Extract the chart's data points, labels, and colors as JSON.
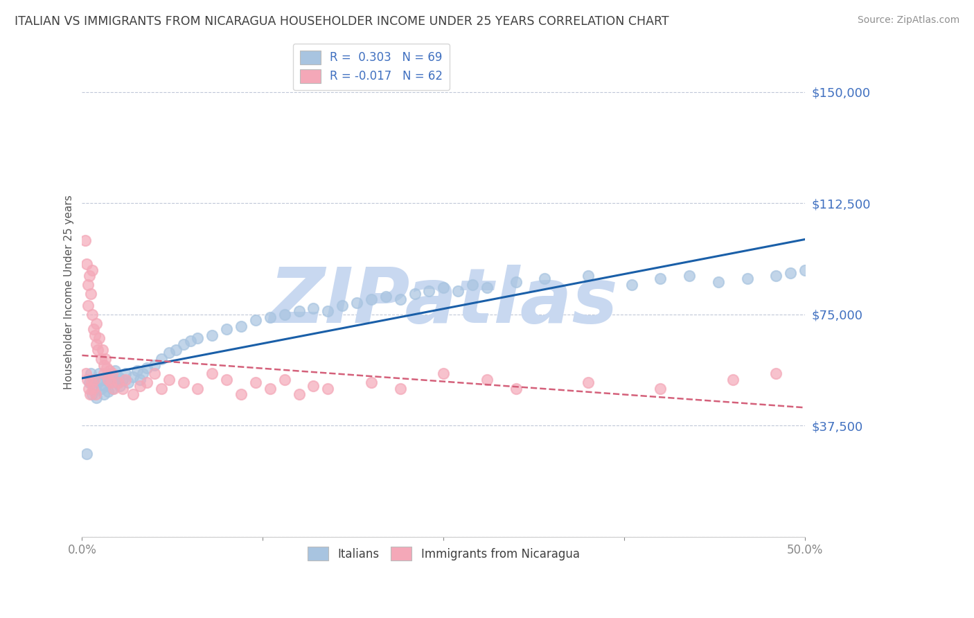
{
  "title": "ITALIAN VS IMMIGRANTS FROM NICARAGUA HOUSEHOLDER INCOME UNDER 25 YEARS CORRELATION CHART",
  "source_text": "Source: ZipAtlas.com",
  "ylabel": "Householder Income Under 25 years",
  "watermark": "ZIPatlas",
  "legend": {
    "italian_r": "R =  0.303",
    "italian_n": "N = 69",
    "nicaragua_r": "R = -0.017",
    "nicaragua_n": "N = 62"
  },
  "yticks": [
    0,
    37500,
    75000,
    112500,
    150000
  ],
  "ytick_labels": [
    "",
    "$37,500",
    "$75,000",
    "$112,500",
    "$150,000"
  ],
  "xlim": [
    0.0,
    50.0
  ],
  "ylim": [
    15000,
    165000
  ],
  "italian_color": "#a8c4e0",
  "nicaragua_color": "#f4a8b8",
  "italian_line_color": "#1a5fa8",
  "nicaragua_line_color": "#d4607a",
  "title_color": "#404040",
  "source_color": "#909090",
  "axis_label_color": "#4070c0",
  "watermark_color": "#c8d8f0",
  "background_color": "#ffffff",
  "italian_x": [
    0.3,
    0.5,
    0.6,
    0.7,
    0.8,
    0.9,
    1.0,
    1.1,
    1.2,
    1.3,
    1.4,
    1.5,
    1.6,
    1.7,
    1.8,
    1.9,
    2.0,
    2.1,
    2.2,
    2.3,
    2.4,
    2.5,
    2.6,
    2.8,
    3.0,
    3.2,
    3.5,
    3.8,
    4.0,
    4.2,
    4.5,
    5.0,
    5.5,
    6.0,
    6.5,
    7.0,
    7.5,
    8.0,
    9.0,
    10.0,
    11.0,
    12.0,
    13.0,
    14.0,
    15.0,
    16.0,
    17.0,
    18.0,
    19.0,
    20.0,
    21.0,
    22.0,
    23.0,
    24.0,
    25.0,
    26.0,
    27.0,
    28.0,
    30.0,
    32.0,
    35.0,
    38.0,
    40.0,
    42.0,
    44.0,
    46.0,
    48.0,
    49.0,
    50.0
  ],
  "italian_y": [
    28000,
    52000,
    55000,
    48000,
    53000,
    50000,
    47000,
    52000,
    55000,
    50000,
    53000,
    48000,
    51000,
    54000,
    49000,
    52000,
    55000,
    50000,
    53000,
    56000,
    52000,
    54000,
    51000,
    53000,
    55000,
    52000,
    54000,
    56000,
    53000,
    55000,
    57000,
    58000,
    60000,
    62000,
    63000,
    65000,
    66000,
    67000,
    68000,
    70000,
    71000,
    73000,
    74000,
    75000,
    76000,
    77000,
    76000,
    78000,
    79000,
    80000,
    81000,
    80000,
    82000,
    83000,
    84000,
    83000,
    85000,
    84000,
    86000,
    87000,
    88000,
    85000,
    87000,
    88000,
    86000,
    87000,
    88000,
    89000,
    90000
  ],
  "nicaragua_x": [
    0.2,
    0.3,
    0.4,
    0.4,
    0.5,
    0.6,
    0.7,
    0.7,
    0.8,
    0.9,
    1.0,
    1.0,
    1.1,
    1.2,
    1.3,
    1.4,
    1.5,
    1.5,
    1.6,
    1.7,
    1.8,
    1.9,
    2.0,
    2.1,
    2.2,
    2.5,
    2.8,
    3.0,
    3.5,
    4.0,
    4.5,
    5.0,
    5.5,
    6.0,
    7.0,
    8.0,
    9.0,
    10.0,
    11.0,
    12.0,
    13.0,
    14.0,
    15.0,
    16.0,
    17.0,
    20.0,
    22.0,
    25.0,
    28.0,
    30.0,
    35.0,
    40.0,
    45.0,
    48.0,
    0.25,
    0.35,
    0.45,
    0.55,
    0.65,
    0.75,
    0.85,
    0.95
  ],
  "nicaragua_y": [
    100000,
    92000,
    85000,
    78000,
    88000,
    82000,
    75000,
    90000,
    70000,
    68000,
    65000,
    72000,
    63000,
    67000,
    60000,
    63000,
    58000,
    55000,
    60000,
    57000,
    53000,
    56000,
    52000,
    55000,
    50000,
    52000,
    50000,
    53000,
    48000,
    51000,
    52000,
    55000,
    50000,
    53000,
    52000,
    50000,
    55000,
    53000,
    48000,
    52000,
    50000,
    53000,
    48000,
    51000,
    50000,
    52000,
    50000,
    55000,
    53000,
    50000,
    52000,
    50000,
    53000,
    55000,
    55000,
    53000,
    50000,
    48000,
    52000,
    50000,
    53000,
    48000
  ]
}
